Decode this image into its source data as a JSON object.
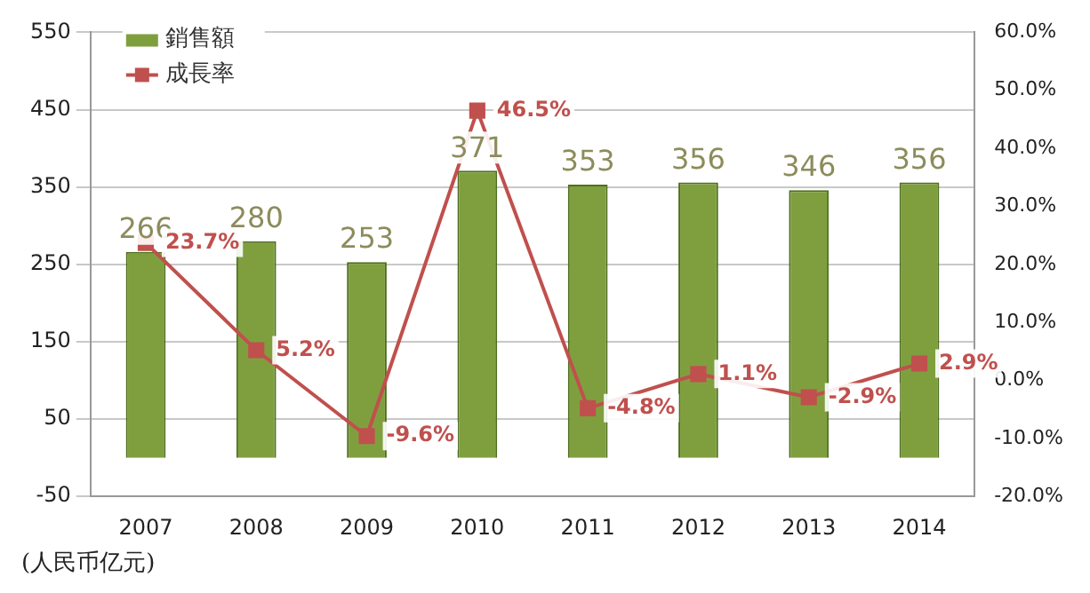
{
  "chart_data": {
    "type": "bar",
    "categories": [
      "2007",
      "2008",
      "2009",
      "2010",
      "2011",
      "2012",
      "2013",
      "2014"
    ],
    "series": [
      {
        "name": "銷售額",
        "color": "#7f9f3f",
        "values": [
          266,
          280,
          253,
          371,
          353,
          356,
          346,
          356
        ],
        "value_labels": [
          "266",
          "280",
          "253",
          "371",
          "353",
          "356",
          "346",
          "356"
        ]
      },
      {
        "name": "成長率",
        "type": "line",
        "axis": "y2",
        "color": "#c0504d",
        "marker": "square",
        "values": [
          23.7,
          5.2,
          -9.6,
          46.5,
          -4.8,
          1.1,
          -2.9,
          2.9
        ],
        "value_labels": [
          "23.7%",
          "5.2%",
          "-9.6%",
          "46.5%",
          "-4.8%",
          "1.1%",
          "-2.9%",
          "2.9%"
        ]
      }
    ],
    "ylim": [
      -50,
      550
    ],
    "yticks": [
      -50,
      50,
      150,
      250,
      350,
      450,
      550
    ],
    "y2lim": [
      -20,
      60
    ],
    "y2ticks": [
      {
        "value": -20,
        "label": "-20.0%"
      },
      {
        "value": -10,
        "label": "-10.0%"
      },
      {
        "value": 0,
        "label": "0.0%"
      },
      {
        "value": 10,
        "label": "10.0%"
      },
      {
        "value": 20,
        "label": "20.0%"
      },
      {
        "value": 30,
        "label": "30.0%"
      },
      {
        "value": 40,
        "label": "40.0%"
      },
      {
        "value": 50,
        "label": "50.0%"
      },
      {
        "value": 60,
        "label": "60.0%"
      }
    ],
    "grid": "y",
    "legend": "top left",
    "annotations": [
      "(人民币亿元)"
    ]
  }
}
